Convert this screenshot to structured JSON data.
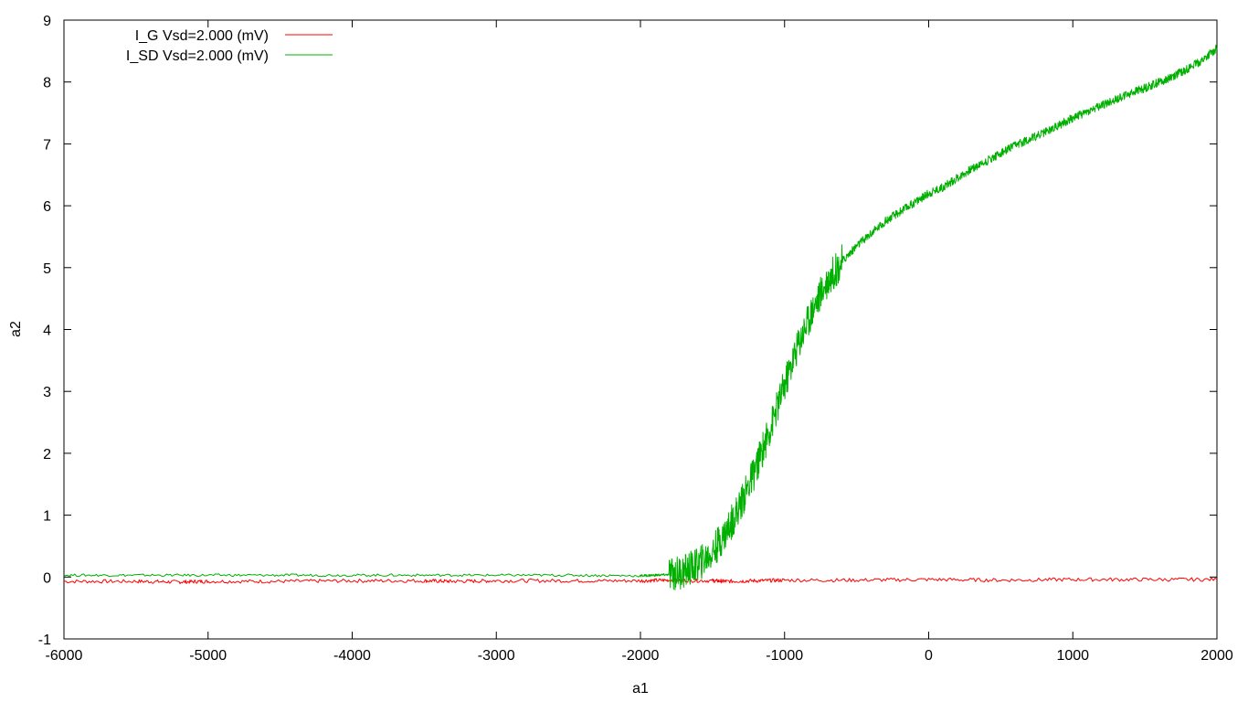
{
  "chart_data": {
    "type": "line",
    "title": "",
    "xlabel": "a1",
    "ylabel": "a2",
    "xlim": [
      -6000,
      2000
    ],
    "ylim": [
      -1,
      9
    ],
    "x_ticks": [
      -6000,
      -5000,
      -4000,
      -3000,
      -2000,
      -1000,
      0,
      1000,
      2000
    ],
    "y_ticks": [
      -1,
      0,
      1,
      2,
      3,
      4,
      5,
      6,
      7,
      8,
      9
    ],
    "grid": false,
    "legend_position": "top-left",
    "series": [
      {
        "name": "I_G Vsd=2.000 (mV)",
        "color": "#ff0000",
        "x": [
          -6000,
          -5500,
          -5200,
          -5000,
          -4500,
          -4000,
          -3500,
          -3300,
          -3000,
          -2500,
          -2000,
          -1800,
          -1500,
          -1400,
          -1200,
          -1000,
          -500,
          0,
          500,
          1000,
          1500,
          2000
        ],
        "y": [
          -0.07,
          -0.07,
          -0.08,
          -0.07,
          -0.07,
          -0.06,
          -0.06,
          -0.07,
          -0.06,
          -0.06,
          -0.06,
          -0.05,
          -0.06,
          -0.07,
          -0.06,
          -0.05,
          -0.05,
          -0.04,
          -0.05,
          -0.04,
          -0.04,
          -0.04
        ]
      },
      {
        "name": "I_SD Vsd=2.000 (mV)",
        "color": "#00b000",
        "x": [
          -6000,
          -5500,
          -5000,
          -4500,
          -4000,
          -3500,
          -3000,
          -2500,
          -2000,
          -1900,
          -1800,
          -1700,
          -1600,
          -1500,
          -1400,
          -1300,
          -1200,
          -1100,
          -1000,
          -900,
          -800,
          -700,
          -600,
          -500,
          -400,
          -300,
          -200,
          -100,
          0,
          100,
          200,
          300,
          400,
          500,
          600,
          700,
          800,
          900,
          1000,
          1100,
          1200,
          1300,
          1400,
          1500,
          1600,
          1700,
          1800,
          1900,
          2000
        ],
        "y": [
          0.03,
          0.03,
          0.03,
          0.03,
          0.03,
          0.03,
          0.03,
          0.03,
          0.02,
          0.03,
          0.04,
          0.09,
          0.2,
          0.4,
          0.75,
          1.2,
          1.75,
          2.4,
          3.1,
          3.8,
          4.35,
          4.8,
          5.1,
          5.35,
          5.55,
          5.75,
          5.9,
          6.05,
          6.2,
          6.3,
          6.45,
          6.6,
          6.72,
          6.85,
          6.97,
          7.08,
          7.18,
          7.3,
          7.42,
          7.52,
          7.62,
          7.72,
          7.82,
          7.9,
          8.0,
          8.1,
          8.22,
          8.35,
          8.55
        ]
      }
    ]
  }
}
